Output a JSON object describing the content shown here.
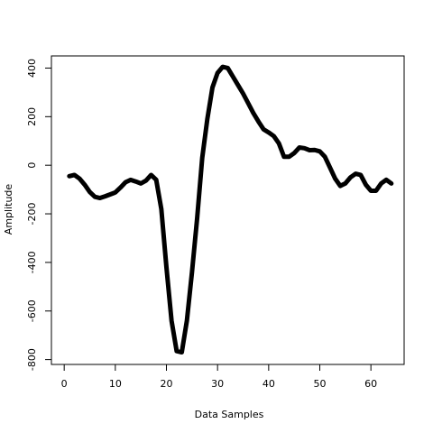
{
  "chart_data": {
    "type": "line",
    "title": "",
    "xlabel": "Data Samples",
    "ylabel": "Amplitude",
    "xlim": [
      -2.5,
      66.5
    ],
    "ylim": [
      -820,
      450
    ],
    "x_ticks": [
      0,
      10,
      20,
      30,
      40,
      50,
      60
    ],
    "x_tick_labels": [
      "0",
      "10",
      "20",
      "30",
      "40",
      "50",
      "60"
    ],
    "y_ticks": [
      400,
      200,
      0,
      -200,
      -400,
      -600,
      -800
    ],
    "y_tick_labels": [
      "400",
      "200",
      "0",
      "-200",
      "-400",
      "-600",
      "-800"
    ],
    "grid": false,
    "legend": "none",
    "line_color": "#000000",
    "series": [
      {
        "x": [
          1,
          2,
          3,
          4,
          5,
          6,
          7,
          8,
          9,
          10,
          11,
          12,
          13,
          14,
          15,
          16,
          17,
          18,
          19,
          20,
          21,
          22,
          23,
          24,
          25,
          26,
          27,
          28,
          29,
          30,
          31,
          32,
          33,
          34,
          35,
          36,
          37,
          38,
          39,
          40,
          41,
          42,
          43,
          44,
          45,
          46,
          47,
          48,
          49,
          50,
          51,
          52,
          53,
          54,
          55,
          56,
          57,
          58,
          59,
          60,
          61,
          62,
          63,
          64
        ],
        "values": [
          -45,
          -40,
          -55,
          -80,
          -110,
          -130,
          -135,
          -128,
          -120,
          -112,
          -92,
          -70,
          -60,
          -67,
          -75,
          -63,
          -40,
          -60,
          -180,
          -420,
          -640,
          -765,
          -770,
          -640,
          -440,
          -220,
          30,
          190,
          320,
          380,
          405,
          400,
          365,
          330,
          295,
          255,
          215,
          180,
          148,
          135,
          120,
          90,
          35,
          35,
          50,
          73,
          70,
          62,
          63,
          57,
          35,
          -10,
          -55,
          -85,
          -75,
          -50,
          -35,
          -40,
          -80,
          -105,
          -105,
          -75,
          -60,
          -75
        ]
      }
    ]
  }
}
